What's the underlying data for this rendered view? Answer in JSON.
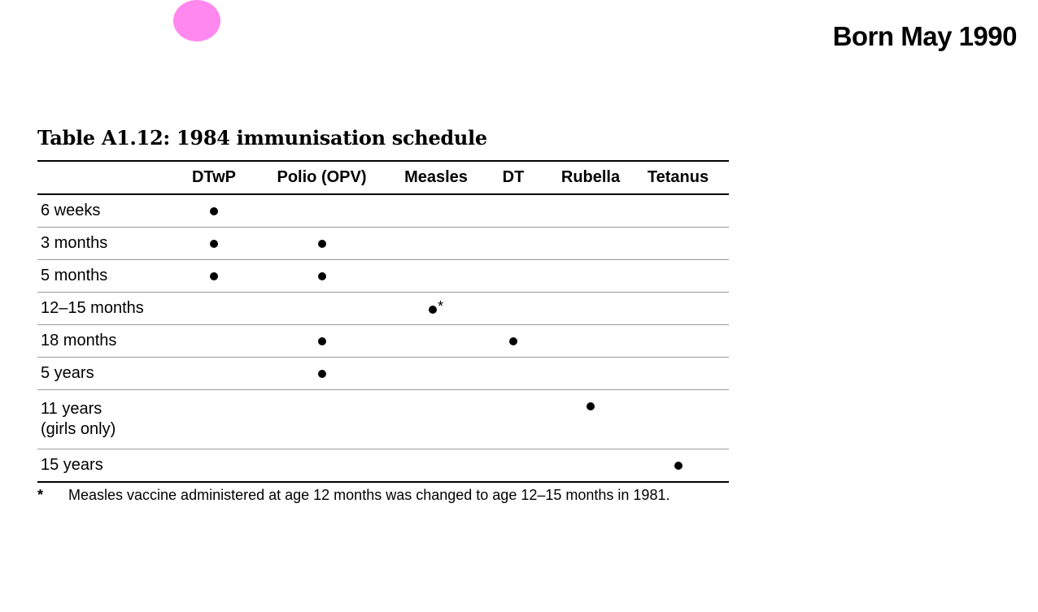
{
  "page": {
    "heading": "Born May 1990",
    "accent_dot_color": "#ff88ee"
  },
  "table": {
    "title": "Table A1.12: 1984 immunisation schedule",
    "columns": [
      "",
      "DTwP",
      "Polio (OPV)",
      "Measles",
      "DT",
      "Rubella",
      "Tetanus"
    ],
    "rows": [
      {
        "age": "6 weeks",
        "doses": [
          true,
          false,
          false,
          false,
          false,
          false
        ]
      },
      {
        "age": "3 months",
        "doses": [
          true,
          true,
          false,
          false,
          false,
          false
        ]
      },
      {
        "age": "5 months",
        "doses": [
          true,
          true,
          false,
          false,
          false,
          false
        ]
      },
      {
        "age": "12–15 months",
        "doses": [
          false,
          false,
          true,
          false,
          false,
          false
        ],
        "marks": [
          "",
          "",
          "*",
          "",
          "",
          ""
        ]
      },
      {
        "age": "18 months",
        "doses": [
          false,
          true,
          false,
          true,
          false,
          false
        ]
      },
      {
        "age": "5 years",
        "doses": [
          false,
          true,
          false,
          false,
          false,
          false
        ]
      },
      {
        "age": "11 years",
        "age_line2": "(girls only)",
        "doses": [
          false,
          false,
          false,
          false,
          true,
          false
        ]
      },
      {
        "age": "15 years",
        "doses": [
          false,
          false,
          false,
          false,
          false,
          true
        ]
      }
    ],
    "footnote_mark": "*",
    "footnote_text": "Measles vaccine administered at age 12 months was changed to age 12–15 months in 1981."
  }
}
